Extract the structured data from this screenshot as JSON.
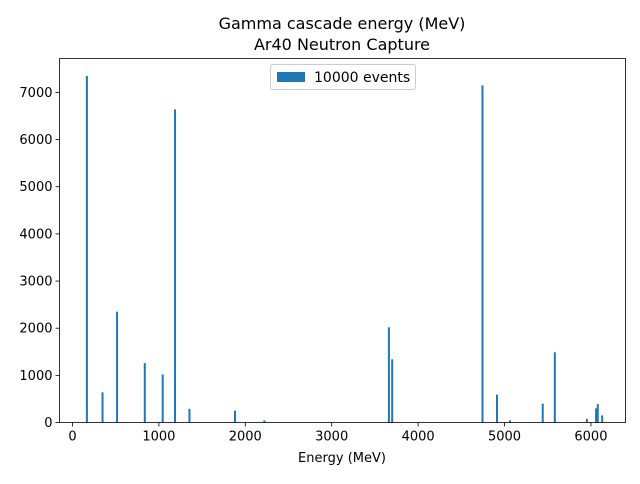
{
  "chart_data": {
    "type": "bar",
    "title": "Gamma cascade energy (MeV)",
    "subtitle": "Ar40 Neutron Capture",
    "xlabel": "Energy (MeV)",
    "ylabel": "",
    "xlim": [
      -150,
      6400
    ],
    "ylim": [
      0,
      7720
    ],
    "xticks": [
      0,
      1000,
      2000,
      3000,
      4000,
      5000,
      6000
    ],
    "yticks": [
      0,
      1000,
      2000,
      3000,
      4000,
      5000,
      6000,
      7000
    ],
    "legend": {
      "position": "top-center",
      "label": "10000 events"
    },
    "bar_color": "#1f77b4",
    "series": [
      {
        "name": "10000 events",
        "points": [
          {
            "x": 167,
            "y": 7350
          },
          {
            "x": 348,
            "y": 640
          },
          {
            "x": 516,
            "y": 2350
          },
          {
            "x": 837,
            "y": 1260
          },
          {
            "x": 1044,
            "y": 1020
          },
          {
            "x": 1187,
            "y": 6640
          },
          {
            "x": 1354,
            "y": 290
          },
          {
            "x": 1881,
            "y": 250
          },
          {
            "x": 2221,
            "y": 45
          },
          {
            "x": 3662,
            "y": 2020
          },
          {
            "x": 3700,
            "y": 1340
          },
          {
            "x": 4745,
            "y": 7150
          },
          {
            "x": 4913,
            "y": 590
          },
          {
            "x": 5063,
            "y": 45
          },
          {
            "x": 5442,
            "y": 400
          },
          {
            "x": 5582,
            "y": 1490
          },
          {
            "x": 5953,
            "y": 80
          },
          {
            "x": 6060,
            "y": 300
          },
          {
            "x": 6079,
            "y": 390
          },
          {
            "x": 6130,
            "y": 150
          }
        ]
      }
    ]
  }
}
